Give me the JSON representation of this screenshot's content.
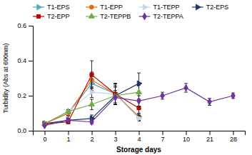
{
  "chart_data": {
    "type": "line",
    "xlabel": "Storage days",
    "ylabel": "Turbidity (Abs at 600nm)",
    "categories": [
      "0",
      "1",
      "2",
      "3",
      "4",
      "7",
      "10",
      "21",
      "28"
    ],
    "series": [
      {
        "name": "T1-EPS",
        "color": "#4BACC6",
        "marker": "triangle-right",
        "values": [
          0.04,
          0.1,
          0.27,
          0.21,
          0.08,
          null,
          null,
          null,
          null
        ],
        "yerr": [
          0.005,
          0.015,
          0.04,
          0.06,
          0.02,
          null,
          null,
          null,
          null
        ]
      },
      {
        "name": "T1-EPP",
        "color": "#E36C09",
        "marker": "circle",
        "values": [
          0.04,
          0.1,
          0.29,
          0.21,
          0.08,
          null,
          null,
          null,
          null
        ],
        "yerr": [
          0.005,
          0.015,
          0.045,
          0.06,
          0.02,
          null,
          null,
          null,
          null
        ]
      },
      {
        "name": "T1-TEPP",
        "color": "#BDD7EE",
        "marker": "triangle-right",
        "values": [
          0.04,
          0.11,
          0.22,
          0.21,
          0.07,
          null,
          null,
          null,
          null
        ],
        "yerr": [
          0.005,
          0.01,
          0.03,
          0.05,
          0.015,
          null,
          null,
          null,
          null
        ]
      },
      {
        "name": "T2-EPS",
        "color": "#1F3864",
        "marker": "triangle-right",
        "values": [
          0.04,
          0.06,
          0.07,
          0.2,
          0.27,
          null,
          null,
          null,
          null
        ],
        "yerr": [
          0.005,
          0.01,
          0.02,
          0.05,
          0.06,
          null,
          null,
          null,
          null
        ]
      },
      {
        "name": "T2-EPP",
        "color": "#C00000",
        "marker": "square",
        "values": [
          0.04,
          0.05,
          0.32,
          0.21,
          0.13,
          null,
          null,
          null,
          null
        ],
        "yerr": [
          0.005,
          0.01,
          0.08,
          0.06,
          0.04,
          null,
          null,
          null,
          null
        ]
      },
      {
        "name": "T2-TEPPB",
        "color": "#70AD47",
        "marker": "triangle-up",
        "values": [
          0.04,
          0.11,
          0.15,
          0.2,
          0.22,
          null,
          null,
          null,
          null
        ],
        "yerr": [
          0.005,
          0.01,
          0.03,
          0.05,
          0.04,
          null,
          null,
          null,
          null
        ]
      },
      {
        "name": "T2-TEPPA",
        "color": "#7030A0",
        "marker": "diamond",
        "values": [
          0.03,
          0.06,
          0.05,
          0.19,
          0.17,
          0.2,
          0.245,
          0.165,
          0.2
        ],
        "yerr": [
          0.005,
          0.01,
          0.01,
          0.04,
          0.03,
          0.02,
          0.025,
          0.02,
          0.015
        ]
      }
    ],
    "ylim": [
      0.0,
      0.6
    ],
    "yticks": [
      {
        "value": 0.0,
        "label": "0.0"
      },
      {
        "value": 0.2,
        "label": "0.2"
      },
      {
        "value": 0.4,
        "label": "0.4"
      },
      {
        "value": 0.6,
        "label": "0.6"
      }
    ],
    "grid": false,
    "legend": "top"
  }
}
